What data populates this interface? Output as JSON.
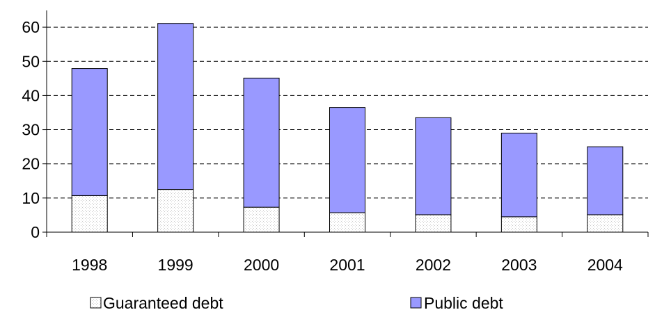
{
  "chart_data": {
    "type": "bar",
    "stacked": true,
    "categories": [
      "1998",
      "1999",
      "2000",
      "2001",
      "2002",
      "2003",
      "2004"
    ],
    "series": [
      {
        "name": "Guaranteed debt",
        "values": [
          10.7,
          12.5,
          7.3,
          5.7,
          5.1,
          4.5,
          5.1
        ],
        "color": "#ffffff",
        "pattern": "light-dotted"
      },
      {
        "name": "Public debt",
        "values": [
          37.2,
          48.6,
          37.8,
          30.8,
          28.4,
          24.5,
          19.9
        ],
        "color": "#9999ff"
      }
    ],
    "ylim": [
      0,
      65
    ],
    "yticks": [
      0,
      10,
      20,
      30,
      40,
      50,
      60
    ],
    "grid": "horizontal-dashed",
    "legend": "bottom",
    "title": "",
    "xlabel": "",
    "ylabel": ""
  }
}
